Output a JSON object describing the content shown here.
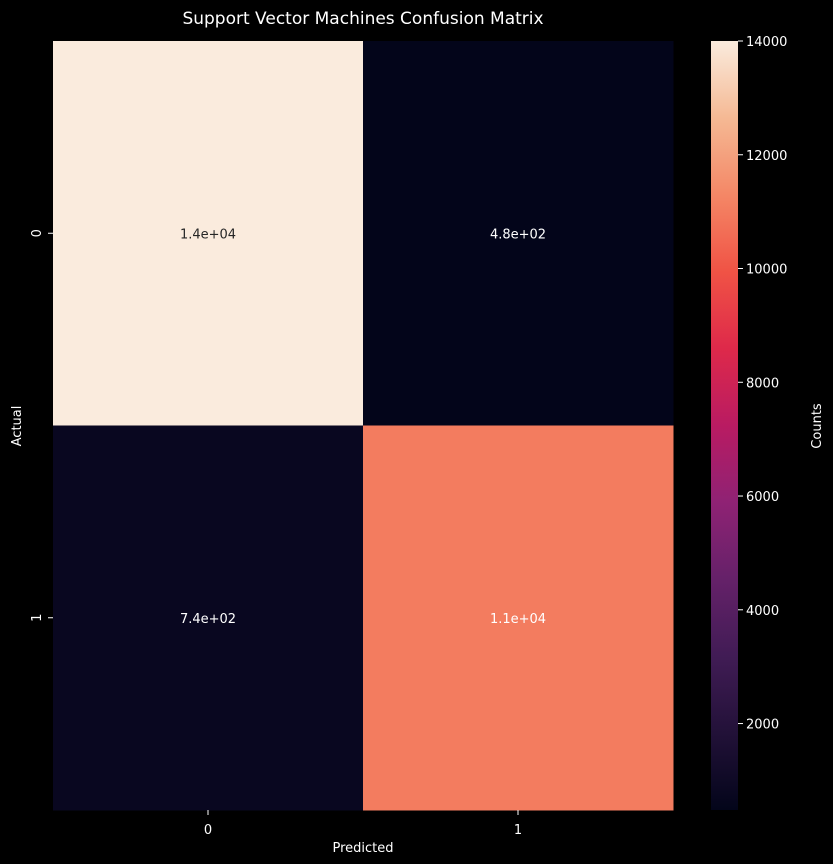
{
  "chart_data": {
    "type": "heatmap",
    "title": "Support Vector Machines Confusion Matrix",
    "xlabel": "Predicted",
    "ylabel": "Actual",
    "x_categories": [
      "0",
      "1"
    ],
    "y_categories": [
      "0",
      "1"
    ],
    "values": [
      [
        14000,
        480
      ],
      [
        740,
        11000
      ]
    ],
    "cell_labels": [
      [
        "1.4e+04",
        "4.8e+02"
      ],
      [
        "7.4e+02",
        "1.1e+04"
      ]
    ],
    "colorbar": {
      "label": "Counts",
      "range": [
        480,
        14000
      ],
      "ticks": [
        2000,
        4000,
        6000,
        8000,
        10000,
        12000,
        14000
      ],
      "colormap": "rocket"
    },
    "colors": {
      "background": "#000000",
      "text_on_dark": "#ffffff",
      "text_on_light": "#262626"
    }
  }
}
